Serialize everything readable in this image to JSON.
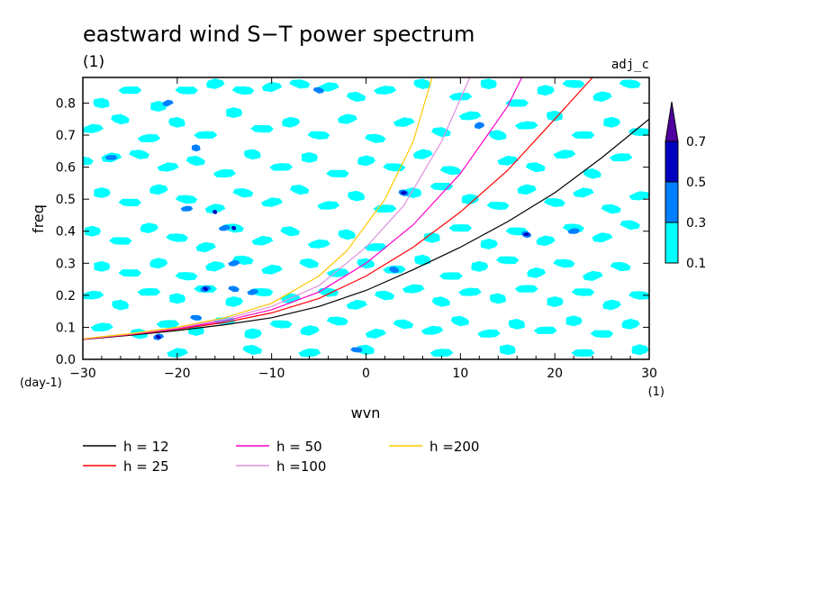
{
  "chart_data": {
    "type": "heatmap",
    "title": "eastward wind S−T power spectrum",
    "units": "(1)",
    "tag": "adj_c",
    "xlabel": "wvn",
    "xunits": "(1)",
    "ylabel": "freq",
    "yunits": "(day-1)",
    "xlim": [
      -30,
      30
    ],
    "ylim": [
      0,
      0.88
    ],
    "xticks": [
      -30,
      -20,
      -10,
      0,
      10,
      20,
      30
    ],
    "yticks": [
      0.0,
      0.1,
      0.2,
      0.3,
      0.4,
      0.5,
      0.6,
      0.7,
      0.8
    ],
    "xtick_labels": [
      "−30",
      "−20",
      "−10",
      "0",
      "10",
      "20",
      "30"
    ],
    "ytick_labels": [
      "0.0",
      "0.1",
      "0.2",
      "0.3",
      "0.4",
      "0.5",
      "0.6",
      "0.7",
      "0.8"
    ],
    "colorbar": {
      "levels": [
        0.1,
        0.3,
        0.5,
        0.7
      ],
      "level_labels": [
        "0.1",
        "0.3",
        "0.5",
        "0.7"
      ],
      "colors": [
        "#00ffff",
        "#0080ff",
        "#0000c0",
        "#5000a0"
      ],
      "extend": "max"
    },
    "series": [
      {
        "name": "h = 12",
        "label": "h = 12",
        "color": "#000000",
        "x": [
          -30,
          -25,
          -20,
          -15,
          -10,
          -5,
          0,
          5,
          10,
          15,
          20,
          25,
          30
        ],
        "y": [
          0.062,
          0.075,
          0.09,
          0.108,
          0.13,
          0.165,
          0.215,
          0.28,
          0.35,
          0.43,
          0.52,
          0.63,
          0.75
        ]
      },
      {
        "name": "h = 25",
        "label": "h = 25",
        "color": "#ff0000",
        "x": [
          -30,
          -25,
          -20,
          -15,
          -10,
          -5,
          0,
          5,
          10,
          15,
          20,
          24
        ],
        "y": [
          0.063,
          0.077,
          0.094,
          0.115,
          0.145,
          0.19,
          0.26,
          0.35,
          0.46,
          0.59,
          0.75,
          0.88
        ]
      },
      {
        "name": "h = 50",
        "label": "h = 50",
        "color": "#ff00c8",
        "x": [
          -30,
          -25,
          -20,
          -15,
          -10,
          -5,
          0,
          5,
          10,
          15,
          16.5
        ],
        "y": [
          0.063,
          0.078,
          0.096,
          0.12,
          0.155,
          0.21,
          0.3,
          0.42,
          0.58,
          0.79,
          0.88
        ]
      },
      {
        "name": "h =100",
        "label": "h =100",
        "color": "#e090e0",
        "x": [
          -30,
          -25,
          -20,
          -15,
          -10,
          -5,
          0,
          4,
          8,
          11
        ],
        "y": [
          0.064,
          0.079,
          0.098,
          0.125,
          0.165,
          0.23,
          0.35,
          0.48,
          0.68,
          0.88
        ]
      },
      {
        "name": "h =200",
        "label": "h =200",
        "color": "#ffc800",
        "x": [
          -30,
          -25,
          -20,
          -15,
          -10,
          -5,
          -2,
          2,
          5,
          7
        ],
        "y": [
          0.064,
          0.08,
          0.1,
          0.13,
          0.175,
          0.26,
          0.34,
          0.5,
          0.68,
          0.88
        ]
      }
    ],
    "patches": [
      {
        "x": -28,
        "y": 0.8,
        "level": 0
      },
      {
        "x": -25,
        "y": 0.84,
        "level": 0
      },
      {
        "x": -22,
        "y": 0.79,
        "level": 0
      },
      {
        "x": -19,
        "y": 0.84,
        "level": 0
      },
      {
        "x": -16,
        "y": 0.86,
        "level": 0
      },
      {
        "x": -13,
        "y": 0.84,
        "level": 0
      },
      {
        "x": -10,
        "y": 0.85,
        "level": 0
      },
      {
        "x": -7,
        "y": 0.86,
        "level": 0
      },
      {
        "x": -4,
        "y": 0.85,
        "level": 0
      },
      {
        "x": -1,
        "y": 0.82,
        "level": 0
      },
      {
        "x": 2,
        "y": 0.84,
        "level": 0
      },
      {
        "x": 6,
        "y": 0.86,
        "level": 0
      },
      {
        "x": 10,
        "y": 0.82,
        "level": 0
      },
      {
        "x": 13,
        "y": 0.86,
        "level": 0
      },
      {
        "x": 16,
        "y": 0.8,
        "level": 0
      },
      {
        "x": 19,
        "y": 0.84,
        "level": 0
      },
      {
        "x": 22,
        "y": 0.86,
        "level": 0
      },
      {
        "x": 25,
        "y": 0.82,
        "level": 0
      },
      {
        "x": 28,
        "y": 0.86,
        "level": 0
      },
      {
        "x": -21,
        "y": 0.8,
        "level": 1
      },
      {
        "x": -5,
        "y": 0.84,
        "level": 1
      },
      {
        "x": -29,
        "y": 0.72,
        "level": 0
      },
      {
        "x": -26,
        "y": 0.75,
        "level": 0
      },
      {
        "x": -23,
        "y": 0.69,
        "level": 0
      },
      {
        "x": -20,
        "y": 0.74,
        "level": 0
      },
      {
        "x": -17,
        "y": 0.7,
        "level": 0
      },
      {
        "x": -14,
        "y": 0.77,
        "level": 0
      },
      {
        "x": -11,
        "y": 0.72,
        "level": 0
      },
      {
        "x": -8,
        "y": 0.74,
        "level": 0
      },
      {
        "x": -5,
        "y": 0.7,
        "level": 0
      },
      {
        "x": -2,
        "y": 0.75,
        "level": 0
      },
      {
        "x": 1,
        "y": 0.69,
        "level": 0
      },
      {
        "x": 4,
        "y": 0.74,
        "level": 0
      },
      {
        "x": 8,
        "y": 0.71,
        "level": 0
      },
      {
        "x": 11,
        "y": 0.76,
        "level": 0
      },
      {
        "x": 14,
        "y": 0.7,
        "level": 0
      },
      {
        "x": 17,
        "y": 0.73,
        "level": 0
      },
      {
        "x": 20,
        "y": 0.76,
        "level": 0
      },
      {
        "x": 23,
        "y": 0.7,
        "level": 0
      },
      {
        "x": 26,
        "y": 0.74,
        "level": 0
      },
      {
        "x": 29,
        "y": 0.71,
        "level": 0
      },
      {
        "x": 12,
        "y": 0.73,
        "level": 1
      },
      {
        "x": -30,
        "y": 0.62,
        "level": 0
      },
      {
        "x": -27,
        "y": 0.63,
        "level": 0
      },
      {
        "x": -24,
        "y": 0.64,
        "level": 0
      },
      {
        "x": -21,
        "y": 0.6,
        "level": 0
      },
      {
        "x": -18,
        "y": 0.62,
        "level": 0
      },
      {
        "x": -15,
        "y": 0.58,
        "level": 0
      },
      {
        "x": -12,
        "y": 0.64,
        "level": 0
      },
      {
        "x": -9,
        "y": 0.6,
        "level": 0
      },
      {
        "x": -6,
        "y": 0.63,
        "level": 0
      },
      {
        "x": -3,
        "y": 0.58,
        "level": 0
      },
      {
        "x": 0,
        "y": 0.62,
        "level": 0
      },
      {
        "x": 3,
        "y": 0.6,
        "level": 0
      },
      {
        "x": 6,
        "y": 0.64,
        "level": 0
      },
      {
        "x": 9,
        "y": 0.59,
        "level": 0
      },
      {
        "x": 15,
        "y": 0.62,
        "level": 0
      },
      {
        "x": 18,
        "y": 0.6,
        "level": 0
      },
      {
        "x": 21,
        "y": 0.64,
        "level": 0
      },
      {
        "x": 24,
        "y": 0.58,
        "level": 0
      },
      {
        "x": 27,
        "y": 0.63,
        "level": 0
      },
      {
        "x": -18,
        "y": 0.66,
        "level": 1
      },
      {
        "x": -27,
        "y": 0.63,
        "level": 1
      },
      {
        "x": -28,
        "y": 0.52,
        "level": 0
      },
      {
        "x": -25,
        "y": 0.49,
        "level": 0
      },
      {
        "x": -22,
        "y": 0.53,
        "level": 0
      },
      {
        "x": -19,
        "y": 0.5,
        "level": 0
      },
      {
        "x": -16,
        "y": 0.47,
        "level": 0
      },
      {
        "x": -13,
        "y": 0.52,
        "level": 0
      },
      {
        "x": -10,
        "y": 0.49,
        "level": 0
      },
      {
        "x": -7,
        "y": 0.53,
        "level": 0
      },
      {
        "x": -4,
        "y": 0.48,
        "level": 0
      },
      {
        "x": -1,
        "y": 0.51,
        "level": 0
      },
      {
        "x": 2,
        "y": 0.47,
        "level": 0
      },
      {
        "x": 5,
        "y": 0.52,
        "level": 0
      },
      {
        "x": 8,
        "y": 0.54,
        "level": 0
      },
      {
        "x": 11,
        "y": 0.5,
        "level": 0
      },
      {
        "x": 14,
        "y": 0.48,
        "level": 0
      },
      {
        "x": 17,
        "y": 0.53,
        "level": 0
      },
      {
        "x": 20,
        "y": 0.49,
        "level": 0
      },
      {
        "x": 23,
        "y": 0.52,
        "level": 0
      },
      {
        "x": 26,
        "y": 0.47,
        "level": 0
      },
      {
        "x": 29,
        "y": 0.51,
        "level": 0
      },
      {
        "x": 4,
        "y": 0.52,
        "level": 1
      },
      {
        "x": -19,
        "y": 0.47,
        "level": 1
      },
      {
        "x": -16,
        "y": 0.46,
        "level": 2
      },
      {
        "x": 4,
        "y": 0.52,
        "level": 2
      },
      {
        "x": -29,
        "y": 0.4,
        "level": 0
      },
      {
        "x": -26,
        "y": 0.37,
        "level": 0
      },
      {
        "x": -23,
        "y": 0.41,
        "level": 0
      },
      {
        "x": -20,
        "y": 0.38,
        "level": 0
      },
      {
        "x": -17,
        "y": 0.35,
        "level": 0
      },
      {
        "x": -14,
        "y": 0.41,
        "level": 0
      },
      {
        "x": -11,
        "y": 0.37,
        "level": 0
      },
      {
        "x": -8,
        "y": 0.4,
        "level": 0
      },
      {
        "x": -5,
        "y": 0.36,
        "level": 0
      },
      {
        "x": -2,
        "y": 0.39,
        "level": 0
      },
      {
        "x": 1,
        "y": 0.35,
        "level": 0
      },
      {
        "x": 7,
        "y": 0.38,
        "level": 0
      },
      {
        "x": 10,
        "y": 0.41,
        "level": 0
      },
      {
        "x": 13,
        "y": 0.36,
        "level": 0
      },
      {
        "x": 16,
        "y": 0.4,
        "level": 0
      },
      {
        "x": 19,
        "y": 0.37,
        "level": 0
      },
      {
        "x": 22,
        "y": 0.41,
        "level": 0
      },
      {
        "x": 25,
        "y": 0.38,
        "level": 0
      },
      {
        "x": 28,
        "y": 0.42,
        "level": 0
      },
      {
        "x": -15,
        "y": 0.41,
        "level": 1
      },
      {
        "x": 17,
        "y": 0.39,
        "level": 1
      },
      {
        "x": 22,
        "y": 0.4,
        "level": 1
      },
      {
        "x": -14,
        "y": 0.41,
        "level": 2
      },
      {
        "x": 17,
        "y": 0.39,
        "level": 2
      },
      {
        "x": -28,
        "y": 0.29,
        "level": 0
      },
      {
        "x": -25,
        "y": 0.27,
        "level": 0
      },
      {
        "x": -22,
        "y": 0.3,
        "level": 0
      },
      {
        "x": -19,
        "y": 0.26,
        "level": 0
      },
      {
        "x": -16,
        "y": 0.29,
        "level": 0
      },
      {
        "x": -13,
        "y": 0.31,
        "level": 0
      },
      {
        "x": -10,
        "y": 0.28,
        "level": 0
      },
      {
        "x": -6,
        "y": 0.3,
        "level": 0
      },
      {
        "x": -3,
        "y": 0.27,
        "level": 0
      },
      {
        "x": 0,
        "y": 0.3,
        "level": 0
      },
      {
        "x": 3,
        "y": 0.28,
        "level": 0
      },
      {
        "x": 6,
        "y": 0.31,
        "level": 0
      },
      {
        "x": 9,
        "y": 0.26,
        "level": 0
      },
      {
        "x": 12,
        "y": 0.29,
        "level": 0
      },
      {
        "x": 15,
        "y": 0.31,
        "level": 0
      },
      {
        "x": 18,
        "y": 0.27,
        "level": 0
      },
      {
        "x": 21,
        "y": 0.3,
        "level": 0
      },
      {
        "x": 24,
        "y": 0.26,
        "level": 0
      },
      {
        "x": 27,
        "y": 0.29,
        "level": 0
      },
      {
        "x": -14,
        "y": 0.3,
        "level": 1
      },
      {
        "x": 3,
        "y": 0.28,
        "level": 1
      },
      {
        "x": -29,
        "y": 0.2,
        "level": 0
      },
      {
        "x": -26,
        "y": 0.17,
        "level": 0
      },
      {
        "x": -23,
        "y": 0.21,
        "level": 0
      },
      {
        "x": -20,
        "y": 0.19,
        "level": 0
      },
      {
        "x": -17,
        "y": 0.22,
        "level": 0
      },
      {
        "x": -14,
        "y": 0.18,
        "level": 0
      },
      {
        "x": -11,
        "y": 0.21,
        "level": 0
      },
      {
        "x": -8,
        "y": 0.19,
        "level": 0
      },
      {
        "x": -4,
        "y": 0.21,
        "level": 0
      },
      {
        "x": -1,
        "y": 0.17,
        "level": 0
      },
      {
        "x": 2,
        "y": 0.2,
        "level": 0
      },
      {
        "x": 5,
        "y": 0.22,
        "level": 0
      },
      {
        "x": 8,
        "y": 0.18,
        "level": 0
      },
      {
        "x": 11,
        "y": 0.21,
        "level": 0
      },
      {
        "x": 14,
        "y": 0.19,
        "level": 0
      },
      {
        "x": 17,
        "y": 0.22,
        "level": 0
      },
      {
        "x": 20,
        "y": 0.18,
        "level": 0
      },
      {
        "x": 23,
        "y": 0.21,
        "level": 0
      },
      {
        "x": 26,
        "y": 0.17,
        "level": 0
      },
      {
        "x": 29,
        "y": 0.2,
        "level": 0
      },
      {
        "x": -17,
        "y": 0.22,
        "level": 1
      },
      {
        "x": -14,
        "y": 0.22,
        "level": 1
      },
      {
        "x": -12,
        "y": 0.21,
        "level": 1
      },
      {
        "x": -17,
        "y": 0.22,
        "level": 2
      },
      {
        "x": -28,
        "y": 0.1,
        "level": 0
      },
      {
        "x": -24,
        "y": 0.08,
        "level": 0
      },
      {
        "x": -21,
        "y": 0.11,
        "level": 0
      },
      {
        "x": -18,
        "y": 0.09,
        "level": 0
      },
      {
        "x": -15,
        "y": 0.12,
        "level": 0
      },
      {
        "x": -12,
        "y": 0.08,
        "level": 0
      },
      {
        "x": -9,
        "y": 0.11,
        "level": 0
      },
      {
        "x": -6,
        "y": 0.09,
        "level": 0
      },
      {
        "x": -3,
        "y": 0.12,
        "level": 0
      },
      {
        "x": 1,
        "y": 0.08,
        "level": 0
      },
      {
        "x": 4,
        "y": 0.11,
        "level": 0
      },
      {
        "x": 7,
        "y": 0.09,
        "level": 0
      },
      {
        "x": 10,
        "y": 0.12,
        "level": 0
      },
      {
        "x": 13,
        "y": 0.08,
        "level": 0
      },
      {
        "x": 16,
        "y": 0.11,
        "level": 0
      },
      {
        "x": 19,
        "y": 0.09,
        "level": 0
      },
      {
        "x": 22,
        "y": 0.12,
        "level": 0
      },
      {
        "x": 25,
        "y": 0.08,
        "level": 0
      },
      {
        "x": 28,
        "y": 0.11,
        "level": 0
      },
      {
        "x": -18,
        "y": 0.13,
        "level": 1
      },
      {
        "x": -22,
        "y": 0.07,
        "level": 1
      },
      {
        "x": -22,
        "y": 0.07,
        "level": 2
      },
      {
        "x": -20,
        "y": 0.02,
        "level": 0
      },
      {
        "x": -12,
        "y": 0.03,
        "level": 0
      },
      {
        "x": -6,
        "y": 0.02,
        "level": 0
      },
      {
        "x": 0,
        "y": 0.03,
        "level": 0
      },
      {
        "x": 8,
        "y": 0.02,
        "level": 0
      },
      {
        "x": 15,
        "y": 0.03,
        "level": 0
      },
      {
        "x": 23,
        "y": 0.02,
        "level": 0
      },
      {
        "x": 29,
        "y": 0.03,
        "level": 0
      },
      {
        "x": -1,
        "y": 0.03,
        "level": 1
      }
    ]
  }
}
